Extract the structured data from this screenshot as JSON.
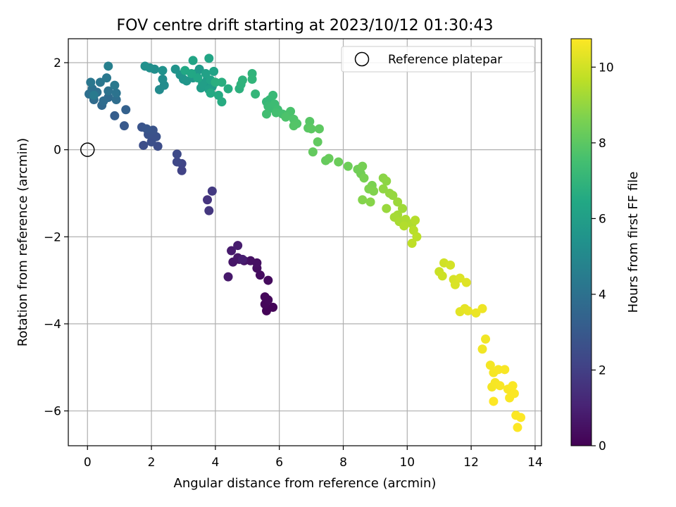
{
  "chart_data": {
    "type": "scatter",
    "title": "FOV centre drift starting at 2023/10/12 01:30:43",
    "xlabel": "Angular distance from reference (arcmin)",
    "ylabel": "Rotation from reference (arcmin)",
    "xlim": [
      -0.6,
      14.2
    ],
    "ylim": [
      -6.8,
      2.55
    ],
    "xticks": [
      0,
      2,
      4,
      6,
      8,
      10,
      12,
      14
    ],
    "yticks": [
      -6,
      -4,
      -2,
      0,
      2
    ],
    "grid": true,
    "legend": {
      "placement": "top-right",
      "entries": [
        "Reference platepar"
      ]
    },
    "reference_point": {
      "x": 0,
      "y": 0
    },
    "colorbar": {
      "label": "Hours from first FF file",
      "range": [
        0,
        10.75
      ],
      "ticks": [
        0,
        2,
        4,
        6,
        8,
        10
      ],
      "colormap": "viridis"
    },
    "series": [
      {
        "points": [
          [
            5.6,
            -3.7,
            0.1
          ],
          [
            5.8,
            -3.62,
            0.1
          ],
          [
            5.55,
            -3.55,
            0.15
          ],
          [
            5.65,
            -3.45,
            0.2
          ],
          [
            5.55,
            -3.38,
            0.2
          ],
          [
            5.65,
            -3.0,
            0.3
          ],
          [
            5.4,
            -2.88,
            0.35
          ],
          [
            5.3,
            -2.72,
            0.4
          ],
          [
            5.3,
            -2.6,
            0.45
          ],
          [
            5.1,
            -2.55,
            0.5
          ],
          [
            4.9,
            -2.55,
            0.55
          ],
          [
            4.75,
            -2.52,
            0.6
          ],
          [
            4.55,
            -2.58,
            0.65
          ],
          [
            4.7,
            -2.48,
            0.7
          ],
          [
            4.4,
            -2.92,
            0.75
          ],
          [
            4.5,
            -2.32,
            0.8
          ],
          [
            4.7,
            -2.2,
            0.85
          ],
          [
            4.85,
            -2.52,
            0.9
          ],
          [
            3.75,
            -1.15,
            1.6
          ],
          [
            3.8,
            -1.4,
            1.7
          ],
          [
            3.9,
            -0.95,
            1.8
          ],
          [
            2.95,
            -0.48,
            2.1
          ],
          [
            2.95,
            -0.32,
            2.2
          ],
          [
            2.8,
            -0.28,
            2.3
          ],
          [
            2.8,
            -0.1,
            2.4
          ],
          [
            2.2,
            0.08,
            2.5
          ],
          [
            1.75,
            0.1,
            2.55
          ],
          [
            2.0,
            0.18,
            2.6
          ],
          [
            2.15,
            0.3,
            2.65
          ],
          [
            1.9,
            0.35,
            2.7
          ],
          [
            2.05,
            0.45,
            2.75
          ],
          [
            1.7,
            0.52,
            2.8
          ],
          [
            1.85,
            0.48,
            2.85
          ],
          [
            1.15,
            0.55,
            3.0
          ],
          [
            0.85,
            0.78,
            3.2
          ],
          [
            1.2,
            0.92,
            3.3
          ],
          [
            0.45,
            1.02,
            3.6
          ],
          [
            0.65,
            1.2,
            3.7
          ],
          [
            0.2,
            1.15,
            3.75
          ],
          [
            0.5,
            1.12,
            3.8
          ],
          [
            0.9,
            1.15,
            3.85
          ],
          [
            0.05,
            1.28,
            3.9
          ],
          [
            0.3,
            1.32,
            3.95
          ],
          [
            0.15,
            1.4,
            4.0
          ],
          [
            0.65,
            1.35,
            4.05
          ],
          [
            0.9,
            1.3,
            4.1
          ],
          [
            0.4,
            1.55,
            4.2
          ],
          [
            0.1,
            1.55,
            4.25
          ],
          [
            0.6,
            1.65,
            4.3
          ],
          [
            0.85,
            1.48,
            4.35
          ],
          [
            0.2,
            1.25,
            4.4
          ],
          [
            0.65,
            1.92,
            4.6
          ],
          [
            2.25,
            1.38,
            5.1
          ],
          [
            2.4,
            1.48,
            5.15
          ],
          [
            2.35,
            1.62,
            5.2
          ],
          [
            2.1,
            1.85,
            5.25
          ],
          [
            1.95,
            1.88,
            5.3
          ],
          [
            1.8,
            1.92,
            5.35
          ],
          [
            2.35,
            1.82,
            5.4
          ],
          [
            2.75,
            1.85,
            5.45
          ],
          [
            2.9,
            1.72,
            5.5
          ],
          [
            3.0,
            1.62,
            5.55
          ],
          [
            3.1,
            1.58,
            5.6
          ],
          [
            3.3,
            1.65,
            5.65
          ],
          [
            3.4,
            1.75,
            5.7
          ],
          [
            3.5,
            1.85,
            5.75
          ],
          [
            3.65,
            1.5,
            5.8
          ],
          [
            3.75,
            1.62,
            5.85
          ],
          [
            3.9,
            1.45,
            5.9
          ],
          [
            3.55,
            1.42,
            5.95
          ],
          [
            3.6,
            1.52,
            6.0
          ],
          [
            3.8,
            1.38,
            6.05
          ],
          [
            3.7,
            1.75,
            6.1
          ],
          [
            3.85,
            1.6,
            6.15
          ],
          [
            3.95,
            1.8,
            6.2
          ],
          [
            3.3,
            2.05,
            6.25
          ],
          [
            3.8,
            2.1,
            6.3
          ],
          [
            3.45,
            1.65,
            6.35
          ],
          [
            3.25,
            1.75,
            6.4
          ],
          [
            3.05,
            1.82,
            6.45
          ],
          [
            3.85,
            1.3,
            6.5
          ],
          [
            4.1,
            1.25,
            6.55
          ],
          [
            4.2,
            1.1,
            6.6
          ],
          [
            4.4,
            1.4,
            6.65
          ],
          [
            4.2,
            1.55,
            6.7
          ],
          [
            4.0,
            1.55,
            6.75
          ],
          [
            4.75,
            1.4,
            6.8
          ],
          [
            4.8,
            1.5,
            6.85
          ],
          [
            4.85,
            1.6,
            6.9
          ],
          [
            5.15,
            1.75,
            6.95
          ],
          [
            5.15,
            1.62,
            7.0
          ],
          [
            5.25,
            1.28,
            7.05
          ],
          [
            5.6,
            1.1,
            7.1
          ],
          [
            5.7,
            1.15,
            7.15
          ],
          [
            5.8,
            1.25,
            7.2
          ],
          [
            5.65,
            1.0,
            7.25
          ],
          [
            5.7,
            0.95,
            7.3
          ],
          [
            5.85,
            1.05,
            7.35
          ],
          [
            5.95,
            0.92,
            7.4
          ],
          [
            5.6,
            0.82,
            7.45
          ],
          [
            5.9,
            0.85,
            7.5
          ],
          [
            6.1,
            0.82,
            7.55
          ],
          [
            6.25,
            0.8,
            7.6
          ],
          [
            6.35,
            0.88,
            7.65
          ],
          [
            6.2,
            0.75,
            7.7
          ],
          [
            6.45,
            0.7,
            7.75
          ],
          [
            6.55,
            0.6,
            7.8
          ],
          [
            6.45,
            0.55,
            7.85
          ],
          [
            6.95,
            0.65,
            7.9
          ],
          [
            6.9,
            0.5,
            7.95
          ],
          [
            7.0,
            0.48,
            8.0
          ],
          [
            7.25,
            0.48,
            8.05
          ],
          [
            7.2,
            0.18,
            8.1
          ],
          [
            7.05,
            -0.05,
            8.15
          ],
          [
            7.45,
            -0.25,
            8.2
          ],
          [
            7.55,
            -0.2,
            8.25
          ],
          [
            7.85,
            -0.28,
            8.3
          ],
          [
            8.15,
            -0.38,
            8.35
          ],
          [
            8.45,
            -0.45,
            8.4
          ],
          [
            8.55,
            -0.55,
            8.45
          ],
          [
            8.6,
            -0.38,
            8.5
          ],
          [
            8.65,
            -0.65,
            8.55
          ],
          [
            8.9,
            -0.82,
            8.6
          ],
          [
            8.8,
            -0.9,
            8.65
          ],
          [
            8.95,
            -0.95,
            8.7
          ],
          [
            8.6,
            -1.15,
            8.75
          ],
          [
            8.85,
            -1.2,
            8.8
          ],
          [
            9.25,
            -0.65,
            8.85
          ],
          [
            9.35,
            -0.72,
            8.9
          ],
          [
            9.25,
            -0.9,
            8.95
          ],
          [
            9.45,
            -1.0,
            9.0
          ],
          [
            9.55,
            -1.05,
            9.05
          ],
          [
            9.35,
            -1.35,
            9.1
          ],
          [
            9.7,
            -1.2,
            9.15
          ],
          [
            9.85,
            -1.35,
            9.2
          ],
          [
            9.7,
            -1.5,
            9.25
          ],
          [
            9.6,
            -1.55,
            9.3
          ],
          [
            9.75,
            -1.65,
            9.35
          ],
          [
            9.95,
            -1.6,
            9.4
          ],
          [
            10.15,
            -1.7,
            9.45
          ],
          [
            9.9,
            -1.75,
            9.5
          ],
          [
            10.25,
            -1.62,
            9.55
          ],
          [
            10.2,
            -1.85,
            9.6
          ],
          [
            10.3,
            -2.0,
            9.65
          ],
          [
            10.15,
            -2.15,
            9.7
          ],
          [
            11.0,
            -2.8,
            9.9
          ],
          [
            11.1,
            -2.9,
            9.95
          ],
          [
            11.15,
            -2.6,
            10.0
          ],
          [
            11.35,
            -2.65,
            10.05
          ],
          [
            11.45,
            -2.98,
            10.1
          ],
          [
            11.5,
            -3.1,
            10.15
          ],
          [
            11.65,
            -2.95,
            10.2
          ],
          [
            11.85,
            -3.05,
            10.25
          ],
          [
            11.65,
            -3.72,
            10.3
          ],
          [
            11.8,
            -3.65,
            10.35
          ],
          [
            11.9,
            -3.7,
            10.4
          ],
          [
            12.15,
            -3.75,
            10.45
          ],
          [
            12.35,
            -3.65,
            10.5
          ],
          [
            12.35,
            -4.58,
            10.55
          ],
          [
            12.45,
            -4.35,
            10.55
          ],
          [
            12.6,
            -4.95,
            10.6
          ],
          [
            12.65,
            -5.45,
            10.6
          ],
          [
            12.7,
            -5.12,
            10.62
          ],
          [
            12.75,
            -5.35,
            10.64
          ],
          [
            12.85,
            -5.05,
            10.65
          ],
          [
            12.9,
            -5.42,
            10.66
          ],
          [
            13.05,
            -5.05,
            10.67
          ],
          [
            13.15,
            -5.5,
            10.68
          ],
          [
            13.2,
            -5.7,
            10.69
          ],
          [
            13.3,
            -5.42,
            10.7
          ],
          [
            13.35,
            -5.6,
            10.71
          ],
          [
            13.4,
            -6.1,
            10.72
          ],
          [
            13.55,
            -6.15,
            10.73
          ],
          [
            13.45,
            -6.38,
            10.74
          ],
          [
            12.7,
            -5.78,
            10.75
          ]
        ]
      }
    ]
  }
}
